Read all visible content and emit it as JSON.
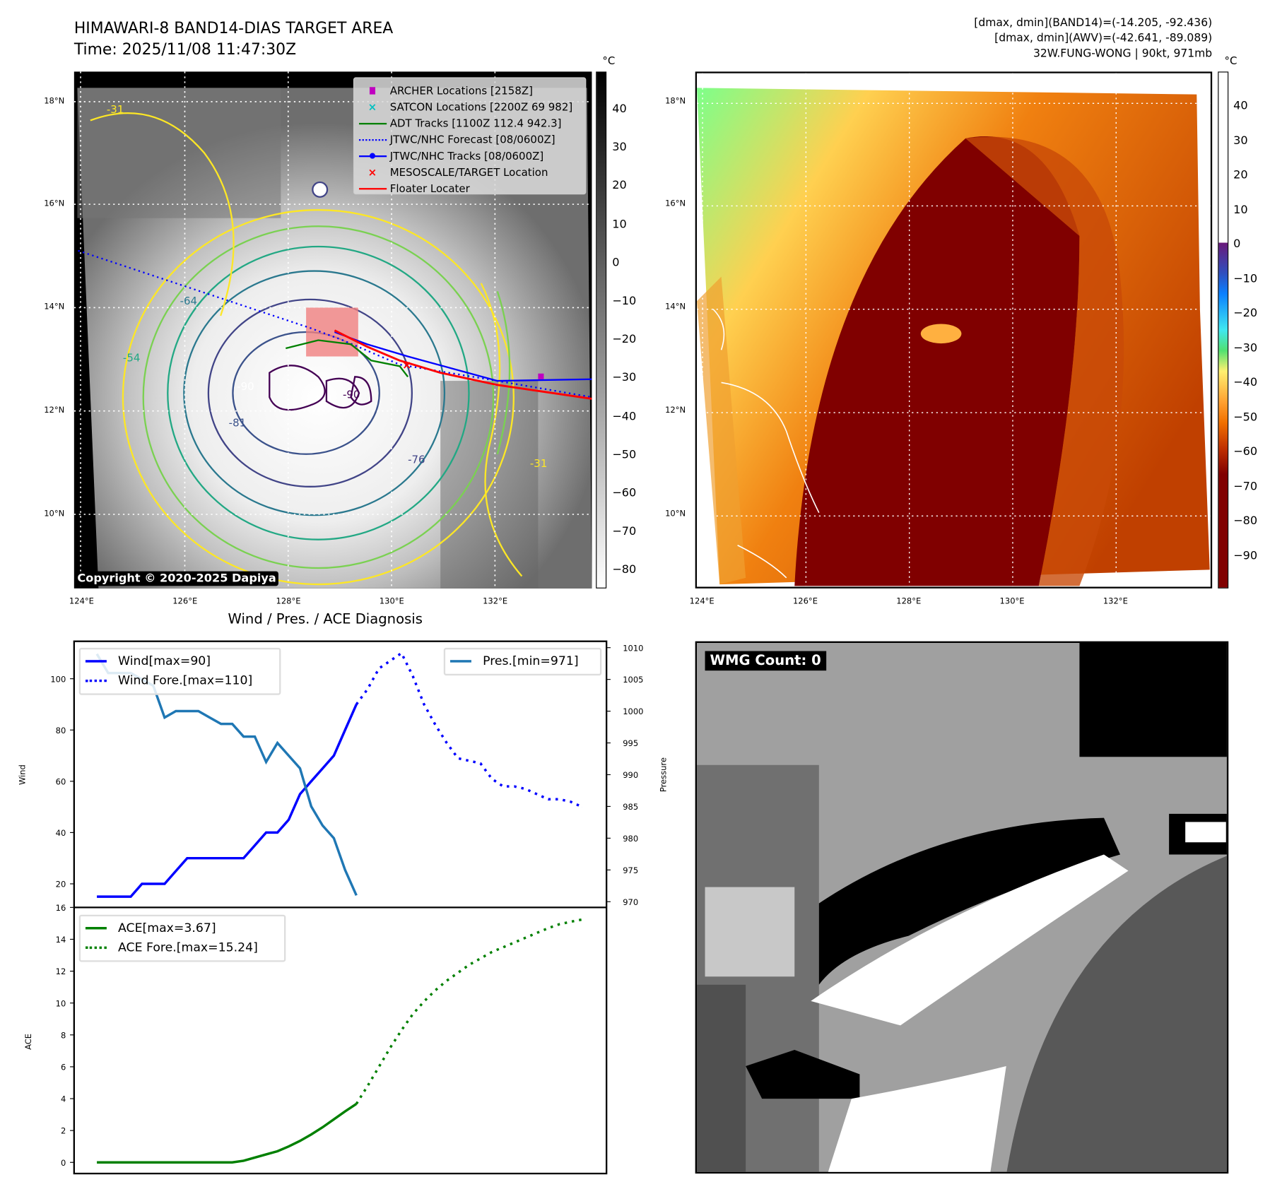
{
  "left_map": {
    "title": "HIMAWARI-8 BAND14-DIAS TARGET AREA",
    "time": "Time: 2025/11/08 11:47:30Z",
    "unit": "°C",
    "copyright": "Copyright © 2020-2025 Dapiya",
    "lat_labels": [
      "18°N",
      "16°N",
      "14°N",
      "12°N",
      "10°N"
    ],
    "lon_labels": [
      "124°E",
      "126°E",
      "128°E",
      "130°E",
      "132°E"
    ],
    "colorbar_ticks": [
      "40",
      "30",
      "20",
      "10",
      "0",
      "−10",
      "−20",
      "−30",
      "−40",
      "−50",
      "−60",
      "−70",
      "−80"
    ],
    "contour_labels": [
      "-31",
      "-31",
      "-54",
      "-64",
      "-76",
      "-81",
      "-90",
      "-90"
    ],
    "legend": [
      {
        "label": "ARCHER Locations [2158Z]",
        "color": "#c000c0",
        "marker": "square"
      },
      {
        "label": "SATCON Locations [2200Z 69 982]",
        "color": "#00c0c0",
        "marker": "x"
      },
      {
        "label": "ADT Tracks [1100Z 112.4 942.3]",
        "color": "#008000",
        "marker": "line"
      },
      {
        "label": "JTWC/NHC Forecast [08/0600Z]",
        "color": "#0000ff",
        "marker": "dotted"
      },
      {
        "label": "JTWC/NHC Tracks [08/0600Z]",
        "color": "#0000ff",
        "marker": "line-dot"
      },
      {
        "label": "MESOSCALE/TARGET Location",
        "color": "#ff0000",
        "marker": "x"
      },
      {
        "label": "Floater Locater",
        "color": "#ff0000",
        "marker": "line"
      }
    ]
  },
  "right_map": {
    "info_lines": [
      "[dmax, dmin](BAND14)=(-14.205, -92.436)",
      "[dmax, dmin](AWV)=(-42.641, -89.089)",
      "32W.FUNG-WONG | 90kt, 971mb"
    ],
    "unit": "°C",
    "lat_labels": [
      "18°N",
      "16°N",
      "14°N",
      "12°N",
      "10°N"
    ],
    "lon_labels": [
      "124°E",
      "126°E",
      "128°E",
      "130°E",
      "132°E"
    ],
    "colorbar_ticks": [
      "40",
      "30",
      "20",
      "10",
      "0",
      "−10",
      "−20",
      "−30",
      "−40",
      "−50",
      "−60",
      "−70",
      "−80",
      "−90"
    ]
  },
  "wmg_panel": {
    "label": "WMG Count: 0"
  },
  "chart_data": {
    "type": "line",
    "title": "Wind / Pres. / ACE Diagnosis",
    "panels": [
      {
        "ylabel": "Wind",
        "y2label": "Pressure",
        "ylim": [
          10.8,
          114.6
        ],
        "y2lim": [
          969.1,
          1011.0
        ],
        "yticks": [
          20,
          40,
          60,
          80,
          100
        ],
        "y2ticks": [
          970,
          975,
          980,
          985,
          990,
          995,
          1000,
          1005,
          1010
        ],
        "series": [
          {
            "name": "Wind[max=90]",
            "color": "#0000ff",
            "style": "solid",
            "axis": "left",
            "x_start": 0,
            "values": [
              15,
              15,
              15,
              15,
              20,
              20,
              20,
              25,
              30,
              30,
              30,
              30,
              30,
              30,
              35,
              40,
              40,
              45,
              55,
              60,
              65,
              70,
              80,
              90
            ]
          },
          {
            "name": "Wind Fore.[max=110]",
            "color": "#0000ff",
            "style": "dotted",
            "axis": "left",
            "x_start": 23,
            "values": [
              90,
              96,
              104,
              107,
              110,
              101,
              90,
              82,
              75,
              69,
              68,
              67,
              61,
              58,
              58,
              57,
              55,
              53,
              53,
              52,
              50
            ]
          },
          {
            "name": "Pres.[min=971]",
            "color": "#1f77b4",
            "style": "solid",
            "axis": "right",
            "x_start": 0,
            "values": [
              1009,
              1006,
              1006,
              1006,
              1005,
              1004,
              999,
              1000,
              1000,
              1000,
              999,
              998,
              998,
              996,
              996,
              992,
              995,
              993,
              991,
              985,
              982,
              980,
              975,
              971
            ]
          }
        ],
        "legend_left": [
          "Wind[max=90]",
          "Wind Fore.[max=110]"
        ],
        "legend_right": [
          "Pres.[min=971]"
        ]
      },
      {
        "ylabel": "ACE",
        "ylim": [
          -0.7,
          16
        ],
        "yticks": [
          0,
          2,
          4,
          6,
          8,
          10,
          12,
          14,
          16
        ],
        "series": [
          {
            "name": "ACE[max=3.67]",
            "color": "#008000",
            "style": "solid",
            "x_start": 0,
            "values": [
              0,
              0,
              0,
              0,
              0,
              0,
              0,
              0,
              0,
              0,
              0,
              0,
              0,
              0.1,
              0.3,
              0.5,
              0.7,
              1.0,
              1.35,
              1.75,
              2.2,
              2.7,
              3.2,
              3.67
            ]
          },
          {
            "name": "ACE Fore.[max=15.24]",
            "color": "#008000",
            "style": "dotted",
            "x_start": 23,
            "values": [
              3.67,
              4.8,
              6.0,
              7.2,
              8.3,
              9.3,
              10.1,
              10.8,
              11.4,
              11.9,
              12.4,
              12.8,
              13.2,
              13.5,
              13.8,
              14.1,
              14.4,
              14.7,
              14.95,
              15.1,
              15.24
            ]
          }
        ],
        "legend": [
          "ACE[max=3.67]",
          "ACE Fore.[max=15.24]"
        ]
      }
    ],
    "x_count": 44
  }
}
